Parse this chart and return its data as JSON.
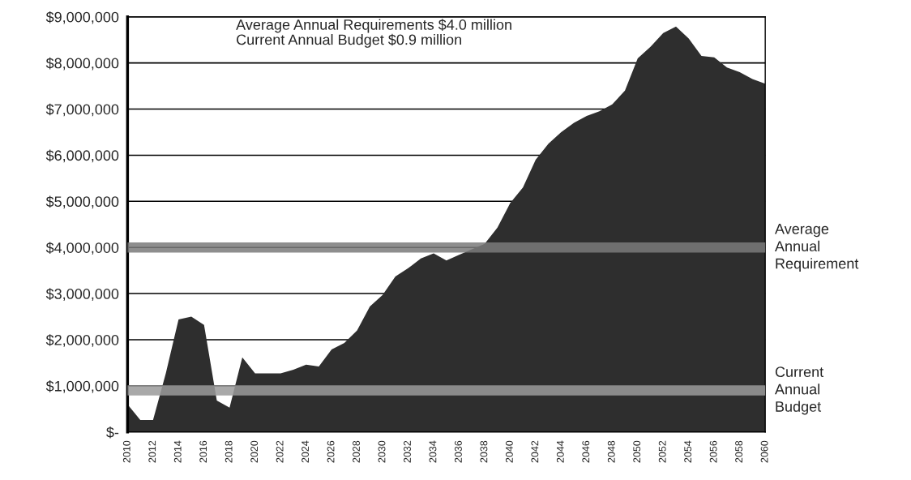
{
  "chart_data": {
    "type": "area",
    "x": [
      2010,
      2011,
      2012,
      2013,
      2014,
      2015,
      2016,
      2017,
      2018,
      2019,
      2020,
      2021,
      2022,
      2023,
      2024,
      2025,
      2026,
      2027,
      2028,
      2029,
      2030,
      2031,
      2032,
      2033,
      2034,
      2035,
      2036,
      2037,
      2038,
      2039,
      2040,
      2041,
      2042,
      2043,
      2044,
      2045,
      2046,
      2047,
      2048,
      2049,
      2050,
      2051,
      2052,
      2053,
      2054,
      2055,
      2056,
      2057,
      2058,
      2059,
      2060
    ],
    "series": [
      {
        "color": "#2e2e2e",
        "values": [
          600000,
          260000,
          260000,
          1270000,
          2440000,
          2500000,
          2320000,
          680000,
          530000,
          1620000,
          1270000,
          1270000,
          1270000,
          1350000,
          1460000,
          1420000,
          1790000,
          1930000,
          2200000,
          2720000,
          2970000,
          3370000,
          3550000,
          3760000,
          3870000,
          3720000,
          3840000,
          3960000,
          4080000,
          4430000,
          4960000,
          5300000,
          5900000,
          6250000,
          6500000,
          6700000,
          6850000,
          6950000,
          7100000,
          7400000,
          8100000,
          8350000,
          8650000,
          8790000,
          8530000,
          8150000,
          8120000,
          7900000,
          7800000,
          7650000,
          7550000
        ]
      }
    ],
    "xlim": [
      2010,
      2060
    ],
    "xticks": [
      2010,
      2012,
      2014,
      2016,
      2018,
      2020,
      2022,
      2024,
      2026,
      2028,
      2030,
      2032,
      2034,
      2036,
      2038,
      2040,
      2042,
      2044,
      2046,
      2048,
      2050,
      2052,
      2054,
      2056,
      2058,
      2060
    ],
    "ylim": [
      0,
      9000000
    ],
    "yticks": [
      {
        "value": 0,
        "label": "$-"
      },
      {
        "value": 1000000,
        "label": "$1,000,000"
      },
      {
        "value": 2000000,
        "label": "$2,000,000"
      },
      {
        "value": 3000000,
        "label": "$3,000,000"
      },
      {
        "value": 4000000,
        "label": "$4,000,000"
      },
      {
        "value": 5000000,
        "label": "$5,000,000"
      },
      {
        "value": 6000000,
        "label": "$6,000,000"
      },
      {
        "value": 7000000,
        "label": "$7,000,000"
      },
      {
        "value": 8000000,
        "label": "$8,000,000"
      },
      {
        "value": 9000000,
        "label": "$9,000,000"
      }
    ],
    "grid": "y",
    "ref_lines": [
      {
        "axis": "y",
        "value": 4000000,
        "label": "Average\nAnnual\nRequirement",
        "color": "#7a7a7a"
      },
      {
        "axis": "y",
        "value": 900000,
        "label": "Current\nAnnual\nBudget",
        "color": "#9a9a9a"
      }
    ],
    "annotations": [
      "Average Annual Requirements $4.0 million\nCurrent Annual Budget $0.9 million"
    ]
  }
}
